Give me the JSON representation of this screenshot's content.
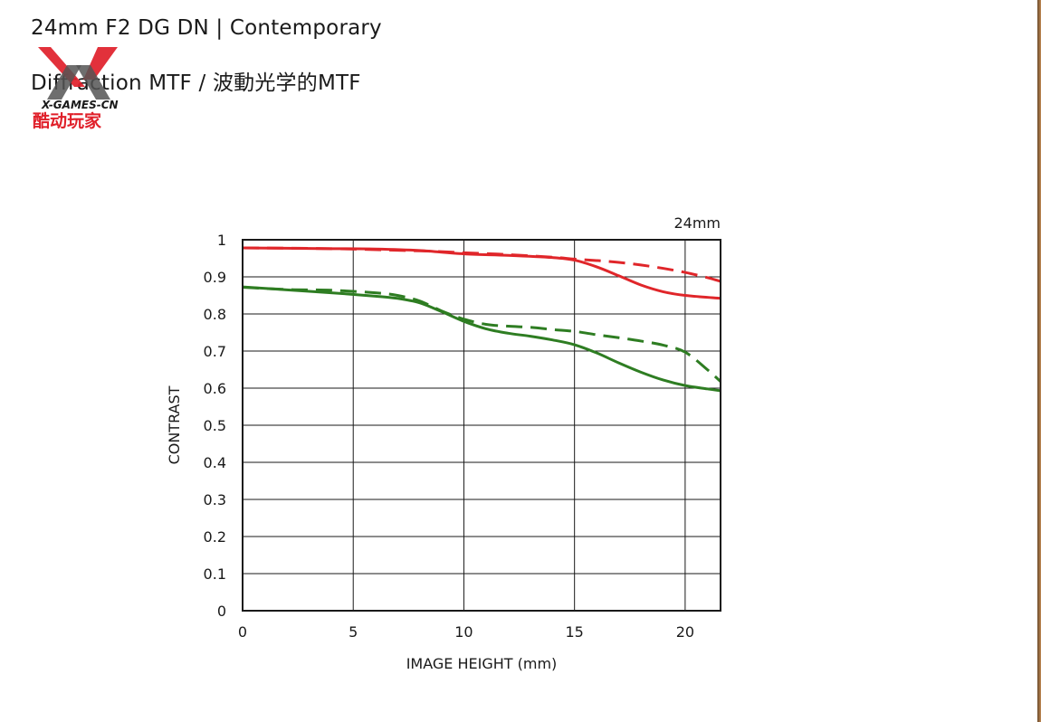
{
  "header": {
    "title": "24mm F2 DG DN | Contemporary",
    "subtitle": "Diffraction MTF / 波動光学的MTF"
  },
  "watermark": {
    "text_top": "X-GAMES-CN",
    "text_bottom": "酷动玩家",
    "color_red": "#e0202a",
    "color_dark": "#1a1a1a"
  },
  "chart_data": {
    "type": "line",
    "title": "",
    "annotation": "24mm",
    "xlabel": "IMAGE HEIGHT (mm)",
    "ylabel": "CONTRAST",
    "xlim": [
      0,
      21.6
    ],
    "ylim": [
      0,
      1
    ],
    "x_ticks": [
      "0",
      "5",
      "10",
      "15",
      "20"
    ],
    "y_ticks": [
      "0",
      "0.1",
      "0.2",
      "0.3",
      "0.4",
      "0.5",
      "0.6",
      "0.7",
      "0.8",
      "0.9",
      "1"
    ],
    "grid": true,
    "legend": "none",
    "series": [
      {
        "color": "#e0262a",
        "style": "solid",
        "points": [
          [
            0,
            0.978
          ],
          [
            2,
            0.977
          ],
          [
            4,
            0.976
          ],
          [
            6,
            0.975
          ],
          [
            8,
            0.971
          ],
          [
            10,
            0.962
          ],
          [
            12,
            0.958
          ],
          [
            14,
            0.952
          ],
          [
            15,
            0.945
          ],
          [
            16,
            0.927
          ],
          [
            17,
            0.903
          ],
          [
            18,
            0.878
          ],
          [
            19,
            0.86
          ],
          [
            20,
            0.85
          ],
          [
            21.6,
            0.842
          ]
        ]
      },
      {
        "color": "#e0262a",
        "style": "dashed",
        "points": [
          [
            0,
            0.978
          ],
          [
            4,
            0.976
          ],
          [
            8,
            0.97
          ],
          [
            10,
            0.965
          ],
          [
            12,
            0.96
          ],
          [
            14,
            0.953
          ],
          [
            15,
            0.948
          ],
          [
            16,
            0.944
          ],
          [
            17,
            0.939
          ],
          [
            18,
            0.932
          ],
          [
            19,
            0.923
          ],
          [
            20,
            0.912
          ],
          [
            21,
            0.898
          ],
          [
            21.6,
            0.888
          ]
        ]
      },
      {
        "color": "#2e7d22",
        "style": "solid",
        "points": [
          [
            0,
            0.873
          ],
          [
            2,
            0.865
          ],
          [
            4,
            0.857
          ],
          [
            6,
            0.848
          ],
          [
            7,
            0.842
          ],
          [
            8,
            0.83
          ],
          [
            9,
            0.806
          ],
          [
            10,
            0.78
          ],
          [
            11,
            0.76
          ],
          [
            12,
            0.748
          ],
          [
            13,
            0.74
          ],
          [
            14,
            0.73
          ],
          [
            15,
            0.717
          ],
          [
            16,
            0.695
          ],
          [
            17,
            0.668
          ],
          [
            18,
            0.643
          ],
          [
            19,
            0.622
          ],
          [
            20,
            0.607
          ],
          [
            21,
            0.598
          ],
          [
            21.6,
            0.593
          ]
        ]
      },
      {
        "color": "#2e7d22",
        "style": "dashed",
        "points": [
          [
            0,
            0.872
          ],
          [
            2,
            0.866
          ],
          [
            4,
            0.864
          ],
          [
            6,
            0.857
          ],
          [
            7,
            0.85
          ],
          [
            8,
            0.835
          ],
          [
            9,
            0.808
          ],
          [
            10,
            0.786
          ],
          [
            11,
            0.772
          ],
          [
            12,
            0.767
          ],
          [
            13,
            0.764
          ],
          [
            14,
            0.758
          ],
          [
            15,
            0.753
          ],
          [
            16,
            0.744
          ],
          [
            17,
            0.736
          ],
          [
            18,
            0.727
          ],
          [
            19,
            0.716
          ],
          [
            20,
            0.697
          ],
          [
            21,
            0.65
          ],
          [
            21.6,
            0.618
          ]
        ]
      }
    ]
  }
}
